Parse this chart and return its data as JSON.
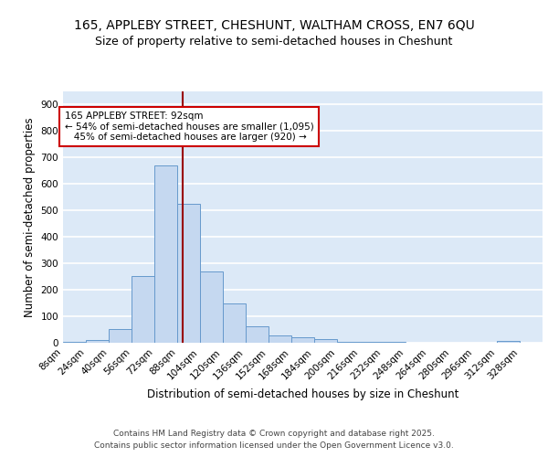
{
  "title_line1": "165, APPLEBY STREET, CHESHUNT, WALTHAM CROSS, EN7 6QU",
  "title_line2": "Size of property relative to semi-detached houses in Cheshunt",
  "xlabel": "Distribution of semi-detached houses by size in Cheshunt",
  "ylabel": "Number of semi-detached properties",
  "bin_labels": [
    "8sqm",
    "24sqm",
    "40sqm",
    "56sqm",
    "72sqm",
    "88sqm",
    "104sqm",
    "120sqm",
    "136sqm",
    "152sqm",
    "168sqm",
    "184sqm",
    "200sqm",
    "216sqm",
    "232sqm",
    "248sqm",
    "264sqm",
    "280sqm",
    "296sqm",
    "312sqm",
    "328sqm"
  ],
  "bin_edges": [
    8,
    24,
    40,
    56,
    72,
    88,
    104,
    120,
    136,
    152,
    168,
    184,
    200,
    216,
    232,
    248,
    264,
    280,
    296,
    312,
    328
  ],
  "bar_heights": [
    5,
    10,
    52,
    252,
    670,
    525,
    270,
    148,
    62,
    28,
    20,
    13,
    5,
    3,
    3,
    0,
    0,
    0,
    0,
    8
  ],
  "bar_color": "#c5d8f0",
  "bar_edge_color": "#6699cc",
  "background_color": "#dce9f7",
  "grid_color": "#ffffff",
  "fig_background": "#ffffff",
  "property_size": 92,
  "vline_color": "#990000",
  "annotation_text": "165 APPLEBY STREET: 92sqm\n← 54% of semi-detached houses are smaller (1,095)\n   45% of semi-detached houses are larger (920) →",
  "annotation_box_color": "#ffffff",
  "annotation_box_edge": "#cc0000",
  "ylim": [
    0,
    950
  ],
  "yticks": [
    0,
    100,
    200,
    300,
    400,
    500,
    600,
    700,
    800,
    900
  ],
  "footer_text": "Contains HM Land Registry data © Crown copyright and database right 2025.\nContains public sector information licensed under the Open Government Licence v3.0.",
  "title_fontsize": 10,
  "subtitle_fontsize": 9,
  "axis_label_fontsize": 8.5,
  "tick_fontsize": 7.5,
  "annotation_fontsize": 7.5,
  "footer_fontsize": 6.5
}
